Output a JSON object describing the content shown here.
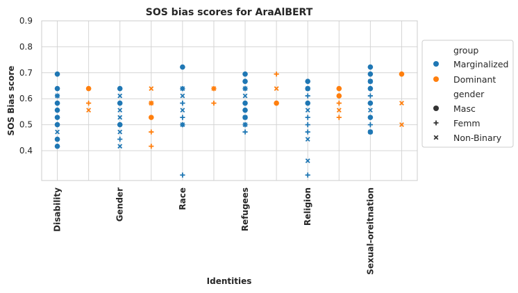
{
  "chart_data": {
    "type": "scatter",
    "title": "SOS bias scores for AraAlBERT",
    "xlabel": "Identities",
    "ylabel": "SOS Bias score",
    "ylim": [
      0.285,
      0.9
    ],
    "yticks": [
      0.4,
      0.5,
      0.6,
      0.7,
      0.8,
      0.9
    ],
    "grid": true,
    "legend_placement": "outside-right",
    "x_positions": [
      "Disability",
      "",
      "Gender",
      "",
      "Race",
      "",
      "Refugees",
      "",
      "Religion",
      "",
      "Sexual-oreitnation",
      ""
    ],
    "x_tick_labels": [
      "Disability",
      "Gender",
      "Race",
      "Refugees",
      "Religion",
      "Sexual-oreitnation"
    ],
    "colors": {
      "Marginalized": "#1f77b4",
      "Dominant": "#ff7f0e"
    },
    "legend": {
      "hue_title": "group",
      "hue": [
        "Marginalized",
        "Dominant"
      ],
      "style_title": "gender",
      "style": [
        "Masc",
        "Femm",
        "Non-Binary"
      ]
    },
    "series": [
      {
        "group": "Marginalized",
        "gender": "Masc",
        "points": [
          {
            "x": 0,
            "y": 0.695
          },
          {
            "x": 0,
            "y": 0.639
          },
          {
            "x": 0,
            "y": 0.583
          },
          {
            "x": 0,
            "y": 0.556
          },
          {
            "x": 0,
            "y": 0.528
          },
          {
            "x": 0,
            "y": 0.5
          },
          {
            "x": 0,
            "y": 0.444
          },
          {
            "x": 0,
            "y": 0.417
          },
          {
            "x": 2,
            "y": 0.639
          },
          {
            "x": 2,
            "y": 0.583
          },
          {
            "x": 2,
            "y": 0.5
          },
          {
            "x": 4,
            "y": 0.722
          },
          {
            "x": 6,
            "y": 0.695
          },
          {
            "x": 6,
            "y": 0.667
          },
          {
            "x": 6,
            "y": 0.583
          },
          {
            "x": 6,
            "y": 0.556
          },
          {
            "x": 6,
            "y": 0.528
          },
          {
            "x": 8,
            "y": 0.667
          },
          {
            "x": 8,
            "y": 0.639
          },
          {
            "x": 8,
            "y": 0.583
          },
          {
            "x": 10,
            "y": 0.722
          },
          {
            "x": 10,
            "y": 0.695
          },
          {
            "x": 10,
            "y": 0.667
          },
          {
            "x": 10,
            "y": 0.639
          },
          {
            "x": 10,
            "y": 0.583
          },
          {
            "x": 10,
            "y": 0.528
          },
          {
            "x": 10,
            "y": 0.472
          }
        ]
      },
      {
        "group": "Marginalized",
        "gender": "Femm",
        "points": [
          {
            "x": 0,
            "y": 0.611
          },
          {
            "x": 0,
            "y": 0.583
          },
          {
            "x": 2,
            "y": 0.444
          },
          {
            "x": 4,
            "y": 0.639
          },
          {
            "x": 4,
            "y": 0.583
          },
          {
            "x": 4,
            "y": 0.528
          },
          {
            "x": 4,
            "y": 0.5
          },
          {
            "x": 4,
            "y": 0.306
          },
          {
            "x": 6,
            "y": 0.639
          },
          {
            "x": 6,
            "y": 0.5
          },
          {
            "x": 6,
            "y": 0.472
          },
          {
            "x": 8,
            "y": 0.611
          },
          {
            "x": 8,
            "y": 0.528
          },
          {
            "x": 8,
            "y": 0.5
          },
          {
            "x": 8,
            "y": 0.472
          },
          {
            "x": 8,
            "y": 0.306
          },
          {
            "x": 10,
            "y": 0.611
          },
          {
            "x": 10,
            "y": 0.583
          },
          {
            "x": 10,
            "y": 0.5
          }
        ]
      },
      {
        "group": "Marginalized",
        "gender": "Non-Binary",
        "points": [
          {
            "x": 0,
            "y": 0.611
          },
          {
            "x": 0,
            "y": 0.472
          },
          {
            "x": 2,
            "y": 0.611
          },
          {
            "x": 2,
            "y": 0.556
          },
          {
            "x": 2,
            "y": 0.528
          },
          {
            "x": 2,
            "y": 0.472
          },
          {
            "x": 2,
            "y": 0.417
          },
          {
            "x": 4,
            "y": 0.639
          },
          {
            "x": 4,
            "y": 0.611
          },
          {
            "x": 4,
            "y": 0.556
          },
          {
            "x": 4,
            "y": 0.5
          },
          {
            "x": 6,
            "y": 0.639
          },
          {
            "x": 6,
            "y": 0.611
          },
          {
            "x": 6,
            "y": 0.528
          },
          {
            "x": 6,
            "y": 0.5
          },
          {
            "x": 8,
            "y": 0.639
          },
          {
            "x": 8,
            "y": 0.556
          },
          {
            "x": 8,
            "y": 0.444
          },
          {
            "x": 8,
            "y": 0.361
          },
          {
            "x": 10,
            "y": 0.667
          },
          {
            "x": 10,
            "y": 0.556
          },
          {
            "x": 10,
            "y": 0.472
          }
        ]
      },
      {
        "group": "Dominant",
        "gender": "Masc",
        "points": [
          {
            "x": 1,
            "y": 0.639
          },
          {
            "x": 3,
            "y": 0.528
          },
          {
            "x": 7,
            "y": 0.583
          },
          {
            "x": 9,
            "y": 0.639
          },
          {
            "x": 9,
            "y": 0.611
          },
          {
            "x": 11,
            "y": 0.695
          }
        ]
      },
      {
        "group": "Dominant",
        "gender": "Femm",
        "points": [
          {
            "x": 1,
            "y": 0.583
          },
          {
            "x": 3,
            "y": 0.583
          },
          {
            "x": 3,
            "y": 0.472
          },
          {
            "x": 3,
            "y": 0.417
          },
          {
            "x": 5,
            "y": 0.639
          },
          {
            "x": 5,
            "y": 0.583
          },
          {
            "x": 7,
            "y": 0.695
          },
          {
            "x": 9,
            "y": 0.583
          },
          {
            "x": 9,
            "y": 0.528
          }
        ]
      },
      {
        "group": "Dominant",
        "gender": "Non-Binary",
        "points": [
          {
            "x": 1,
            "y": 0.556
          },
          {
            "x": 3,
            "y": 0.639
          },
          {
            "x": 3,
            "y": 0.583
          },
          {
            "x": 5,
            "y": 0.639
          },
          {
            "x": 7,
            "y": 0.639
          },
          {
            "x": 9,
            "y": 0.556
          },
          {
            "x": 11,
            "y": 0.583
          },
          {
            "x": 11,
            "y": 0.5
          }
        ]
      }
    ]
  }
}
